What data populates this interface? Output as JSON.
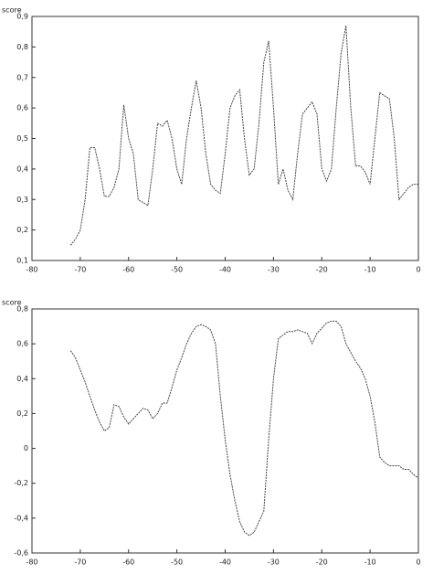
{
  "chart_data": [
    {
      "type": "line",
      "y_label": "score",
      "xlim": [
        -80,
        0
      ],
      "xticks": [
        -80,
        -70,
        -60,
        -50,
        -40,
        -30,
        -20,
        -10,
        0
      ],
      "ylim": [
        0.1,
        0.9
      ],
      "yticks": [
        {
          "value": 0.1,
          "label": "0,1"
        },
        {
          "value": 0.2,
          "label": "0,2"
        },
        {
          "value": 0.3,
          "label": "0,3"
        },
        {
          "value": 0.4,
          "label": "0,4"
        },
        {
          "value": 0.5,
          "label": "0,5"
        },
        {
          "value": 0.6,
          "label": "0,6"
        },
        {
          "value": 0.7,
          "label": "0,7"
        },
        {
          "value": 0.8,
          "label": "0,8"
        },
        {
          "value": 0.9,
          "label": "0,9"
        }
      ],
      "color": "#444444",
      "x": [
        -72,
        -71,
        -70,
        -69,
        -68,
        -67,
        -66,
        -65,
        -64,
        -63,
        -62,
        -61,
        -60,
        -59,
        -58,
        -57,
        -56,
        -55,
        -54,
        -53,
        -52,
        -51,
        -50,
        -49,
        -48,
        -47,
        -46,
        -45,
        -44,
        -43,
        -42,
        -41,
        -40,
        -39,
        -38,
        -37,
        -36,
        -35,
        -34,
        -33,
        -32,
        -31,
        -30,
        -29,
        -28,
        -27,
        -26,
        -25,
        -24,
        -23,
        -22,
        -21,
        -20,
        -19,
        -18,
        -17,
        -16,
        -15,
        -14,
        -13,
        -12,
        -11,
        -10,
        -9,
        -8,
        -7,
        -6,
        -5,
        -4,
        -3,
        -2,
        -1,
        0
      ],
      "values": [
        0.15,
        0.17,
        0.2,
        0.3,
        0.47,
        0.47,
        0.4,
        0.31,
        0.31,
        0.34,
        0.4,
        0.61,
        0.5,
        0.45,
        0.3,
        0.29,
        0.28,
        0.4,
        0.55,
        0.54,
        0.56,
        0.5,
        0.4,
        0.35,
        0.5,
        0.6,
        0.69,
        0.6,
        0.45,
        0.35,
        0.33,
        0.32,
        0.45,
        0.6,
        0.64,
        0.66,
        0.5,
        0.38,
        0.4,
        0.55,
        0.75,
        0.82,
        0.6,
        0.35,
        0.4,
        0.33,
        0.3,
        0.45,
        0.58,
        0.6,
        0.62,
        0.58,
        0.4,
        0.36,
        0.4,
        0.6,
        0.78,
        0.87,
        0.6,
        0.41,
        0.41,
        0.39,
        0.35,
        0.5,
        0.65,
        0.64,
        0.63,
        0.5,
        0.3,
        0.32,
        0.34,
        0.35,
        0.35
      ]
    },
    {
      "type": "line",
      "y_label": "score",
      "xlim": [
        -80,
        0
      ],
      "xticks": [
        -80,
        -70,
        -60,
        -50,
        -40,
        -30,
        -20,
        -10,
        0
      ],
      "ylim": [
        -0.6,
        0.8
      ],
      "yticks": [
        {
          "value": -0.6,
          "label": "-0,6"
        },
        {
          "value": -0.4,
          "label": "-0,4"
        },
        {
          "value": -0.2,
          "label": "-0,2"
        },
        0,
        {
          "value": 0.2,
          "label": "0,2"
        },
        {
          "value": 0.4,
          "label": "0,4"
        },
        {
          "value": 0.6,
          "label": "0,6"
        },
        {
          "value": 0.8,
          "label": "0,8"
        }
      ],
      "color": "#444444",
      "x": [
        -72,
        -71,
        -70,
        -69,
        -68,
        -67,
        -66,
        -65,
        -64,
        -63,
        -62,
        -61,
        -60,
        -59,
        -58,
        -57,
        -56,
        -55,
        -54,
        -53,
        -52,
        -51,
        -50,
        -49,
        -48,
        -47,
        -46,
        -45,
        -44,
        -43,
        -42,
        -41,
        -40,
        -39,
        -38,
        -37,
        -36,
        -35,
        -34,
        -33,
        -32,
        -31,
        -30,
        -29,
        -28,
        -27,
        -26,
        -25,
        -24,
        -23,
        -22,
        -21,
        -20,
        -19,
        -18,
        -17,
        -16,
        -15,
        -14,
        -13,
        -12,
        -11,
        -10,
        -9,
        -8,
        -7,
        -6,
        -5,
        -4,
        -3,
        -2,
        -1,
        0
      ],
      "values": [
        0.56,
        0.52,
        0.45,
        0.38,
        0.3,
        0.22,
        0.15,
        0.1,
        0.12,
        0.25,
        0.24,
        0.18,
        0.14,
        0.17,
        0.2,
        0.23,
        0.22,
        0.17,
        0.2,
        0.26,
        0.26,
        0.35,
        0.45,
        0.52,
        0.6,
        0.66,
        0.7,
        0.71,
        0.7,
        0.68,
        0.6,
        0.3,
        0.05,
        -0.15,
        -0.3,
        -0.42,
        -0.48,
        -0.5,
        -0.48,
        -0.42,
        -0.36,
        0.05,
        0.4,
        0.63,
        0.65,
        0.67,
        0.67,
        0.68,
        0.67,
        0.66,
        0.6,
        0.66,
        0.69,
        0.72,
        0.73,
        0.73,
        0.7,
        0.6,
        0.55,
        0.5,
        0.46,
        0.4,
        0.3,
        0.15,
        -0.05,
        -0.08,
        -0.1,
        -0.1,
        -0.1,
        -0.12,
        -0.12,
        -0.15,
        -0.17
      ]
    }
  ]
}
